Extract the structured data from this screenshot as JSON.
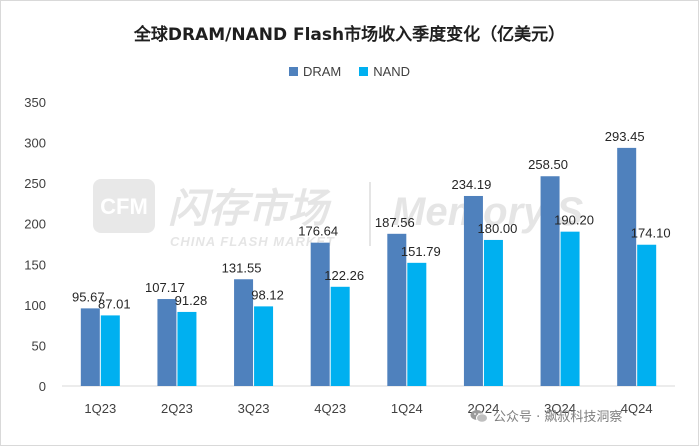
{
  "chart_data": {
    "type": "bar",
    "title": "全球DRAM/NAND Flash市场收入季度变化（亿美元）",
    "categories": [
      "1Q23",
      "2Q23",
      "3Q23",
      "4Q23",
      "1Q24",
      "2Q24",
      "3Q24",
      "4Q24"
    ],
    "series": [
      {
        "name": "DRAM",
        "values": [
          95.67,
          107.17,
          131.55,
          176.64,
          187.56,
          234.19,
          258.5,
          293.45
        ],
        "color": "#4f81bd"
      },
      {
        "name": "NAND",
        "values": [
          87.01,
          91.28,
          98.12,
          122.26,
          151.79,
          180.0,
          190.2,
          174.1
        ],
        "color": "#00b0f0"
      }
    ],
    "ylim": [
      0,
      350
    ],
    "yticks": [
      0,
      50,
      100,
      150,
      200,
      250,
      300,
      350
    ],
    "xlabel": "",
    "ylabel": "",
    "grid": false,
    "legend_position": "top-center",
    "watermark": {
      "logo": "CFM",
      "brand": "闪存市场",
      "subtitle": "CHINA FLASH MARKET",
      "right_logo": "Memory S"
    }
  },
  "footer": {
    "icon": "wechat-icon",
    "text": "公众号 · 飙叔科技洞察"
  }
}
